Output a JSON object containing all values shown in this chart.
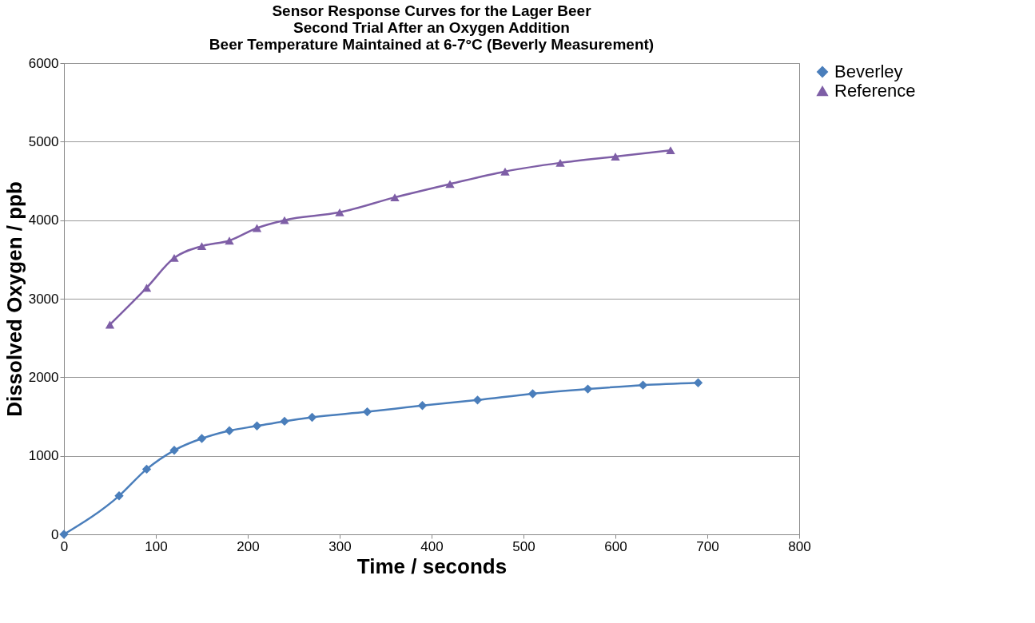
{
  "chart_data": {
    "type": "line",
    "title": [
      "Sensor Response Curves for the Lager Beer",
      "Second Trial After an Oxygen Addition",
      "Beer Temperature Maintained at 6-7°C (Beverly Measurement)"
    ],
    "xlabel": "Time / seconds",
    "ylabel": "Dissolved Oxygen / ppb",
    "xlim": [
      0,
      800
    ],
    "xticks": [
      0,
      100,
      200,
      300,
      400,
      500,
      600,
      700,
      800
    ],
    "ylim": [
      0,
      6000
    ],
    "yticks": [
      0,
      1000,
      2000,
      3000,
      4000,
      5000,
      6000
    ],
    "grid": "y",
    "legend": "right",
    "series": [
      {
        "name": "Beverley",
        "color": "#4a7ebb",
        "marker": "diamond",
        "x": [
          0,
          60,
          90,
          120,
          150,
          180,
          210,
          240,
          270,
          330,
          390,
          450,
          510,
          570,
          630,
          690
        ],
        "values": [
          0,
          490,
          830,
          1070,
          1220,
          1320,
          1380,
          1440,
          1490,
          1560,
          1640,
          1710,
          1790,
          1850,
          1900,
          1930
        ]
      },
      {
        "name": "Reference",
        "color": "#7e5ea6",
        "marker": "triangle",
        "x": [
          50,
          90,
          120,
          150,
          180,
          210,
          240,
          300,
          360,
          420,
          480,
          540,
          600,
          660
        ],
        "values": [
          2670,
          3140,
          3520,
          3670,
          3740,
          3900,
          4000,
          4100,
          4290,
          4460,
          4620,
          4730,
          4810,
          4890
        ]
      }
    ]
  }
}
